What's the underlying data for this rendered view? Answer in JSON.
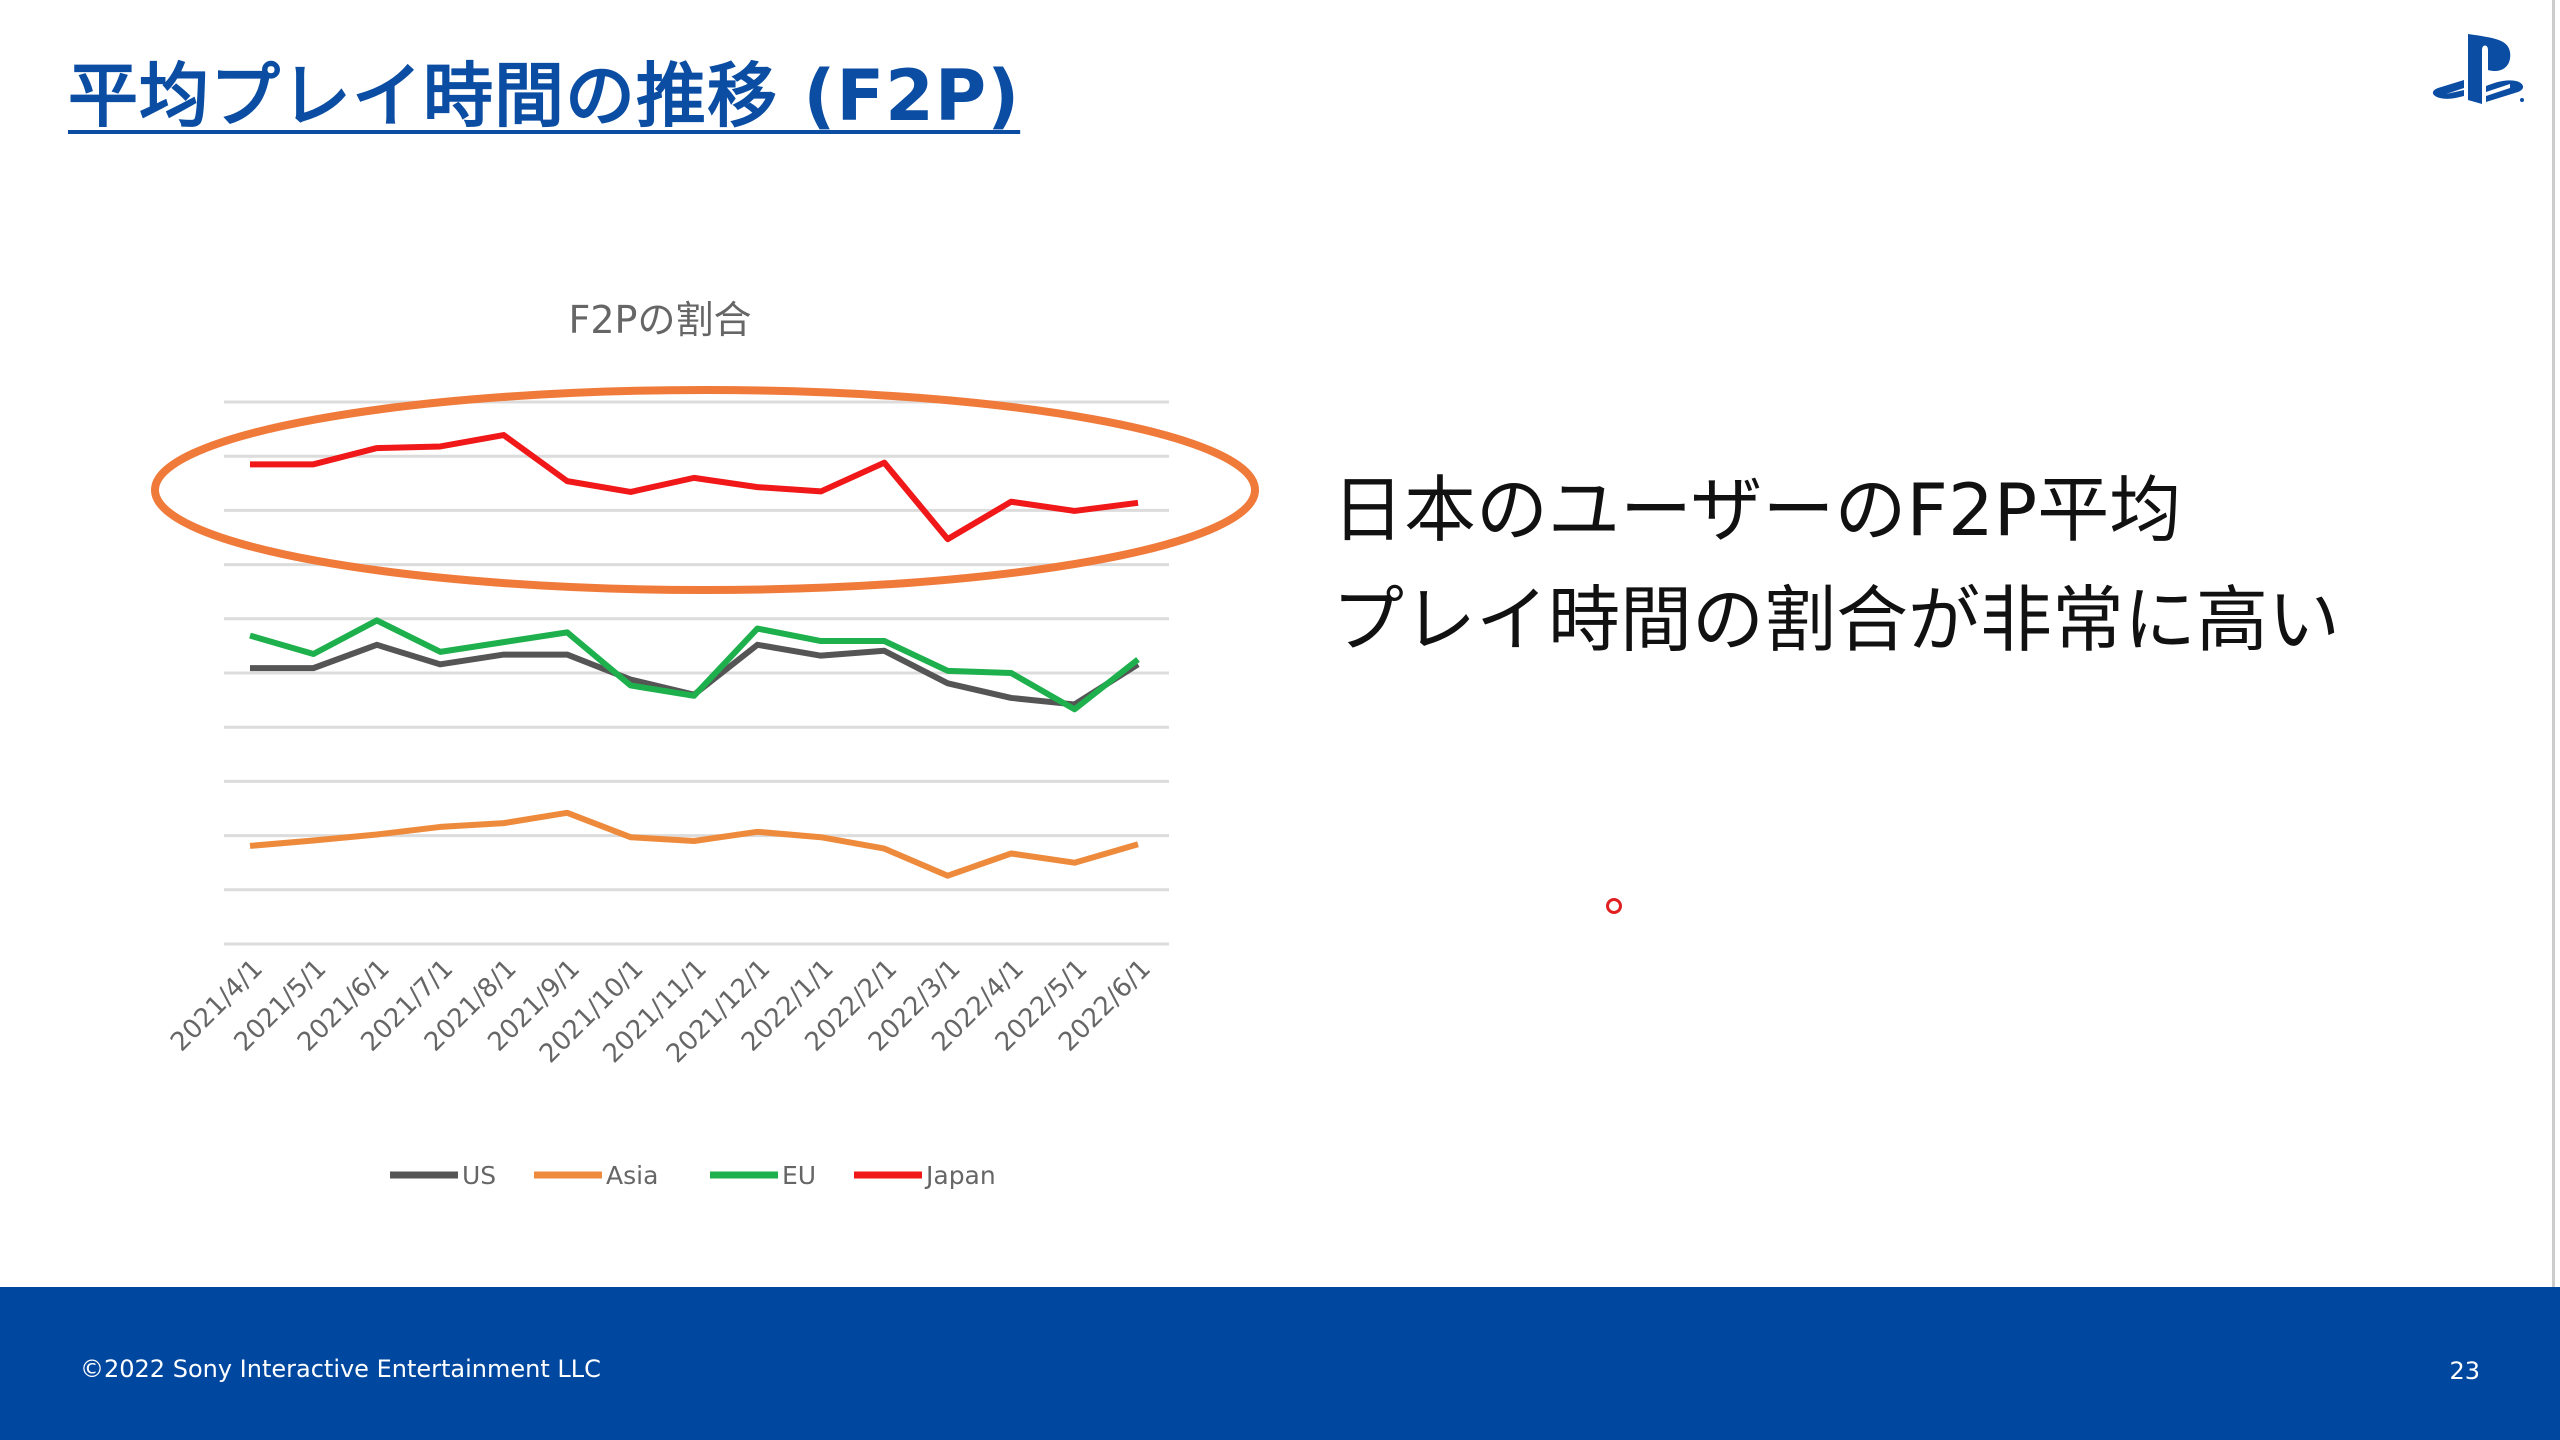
{
  "slide": {
    "title": "平均プレイ時間の推移 (F2P)",
    "message_lines": [
      "日本のユーザーのF2P平均",
      "プレイ時間の割合が非常に高い"
    ],
    "footer": {
      "copyright": "©2022 Sony Interactive Entertainment LLC",
      "page_number": "23"
    },
    "logo": "playstation-logo",
    "colors": {
      "title": "#0a4da3",
      "footer_bg": "#0047a0",
      "highlight_ellipse": "#f07a3a"
    }
  },
  "chart_data": {
    "type": "line",
    "title": "F2Pの割合",
    "categories": [
      "2021/4/1",
      "2021/5/1",
      "2021/6/1",
      "2021/7/1",
      "2021/8/1",
      "2021/9/1",
      "2021/10/1",
      "2021/11/1",
      "2021/12/1",
      "2022/1/1",
      "2022/2/1",
      "2022/3/1",
      "2022/4/1",
      "2022/5/1",
      "2022/6/1"
    ],
    "y_axis_labels": "none (values in gridline units, 0 = bottom gridline, 10 = top gridline)",
    "ylim": [
      0,
      10
    ],
    "grid": true,
    "legend_placement": "bottom",
    "annotation": "Japan series highlighted with orange ellipse",
    "series": [
      {
        "name": "US",
        "color": "#555555",
        "values": [
          5.09,
          5.09,
          5.52,
          5.16,
          5.34,
          5.34,
          4.88,
          4.6,
          5.52,
          5.32,
          5.41,
          4.81,
          4.54,
          4.42,
          5.16
        ]
      },
      {
        "name": "Asia",
        "color": "#ee8a3c",
        "values": [
          1.81,
          1.91,
          2.02,
          2.16,
          2.23,
          2.42,
          1.97,
          1.9,
          2.07,
          1.97,
          1.76,
          1.26,
          1.67,
          1.5,
          1.84
        ]
      },
      {
        "name": "EU",
        "color": "#1db04c",
        "values": [
          5.69,
          5.35,
          5.97,
          5.39,
          5.57,
          5.75,
          4.77,
          4.58,
          5.82,
          5.59,
          5.59,
          5.04,
          5.0,
          4.33,
          5.25
        ]
      },
      {
        "name": "Japan",
        "color": "#f01818",
        "values": [
          8.85,
          8.85,
          9.15,
          9.18,
          9.39,
          8.54,
          8.34,
          8.6,
          8.43,
          8.35,
          8.88,
          7.47,
          8.16,
          7.99,
          8.14
        ]
      }
    ]
  }
}
